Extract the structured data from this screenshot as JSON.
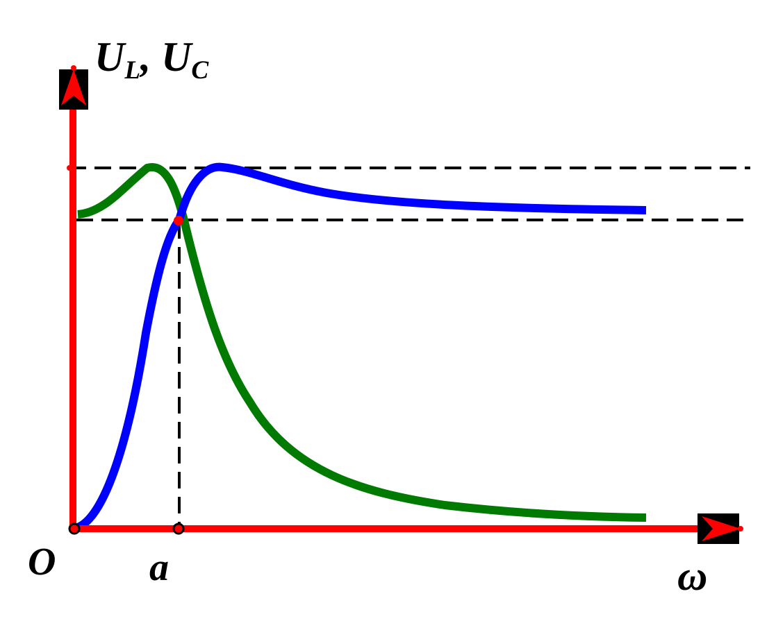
{
  "labels": {
    "y_axis_U": "U",
    "y_axis_sub_L": "L",
    "y_axis_sep": ", ",
    "y_axis_U2": "U",
    "y_axis_sub_C": "C",
    "origin": "O",
    "a_marker": "a",
    "x_axis": "ω"
  },
  "colors": {
    "axes": "#ff0000",
    "U_L_curve": "#0000ff",
    "U_C_curve": "#007a00",
    "guides": "#000000",
    "intersection_point": "#ff0000",
    "arrow_box": "#000000"
  }
}
